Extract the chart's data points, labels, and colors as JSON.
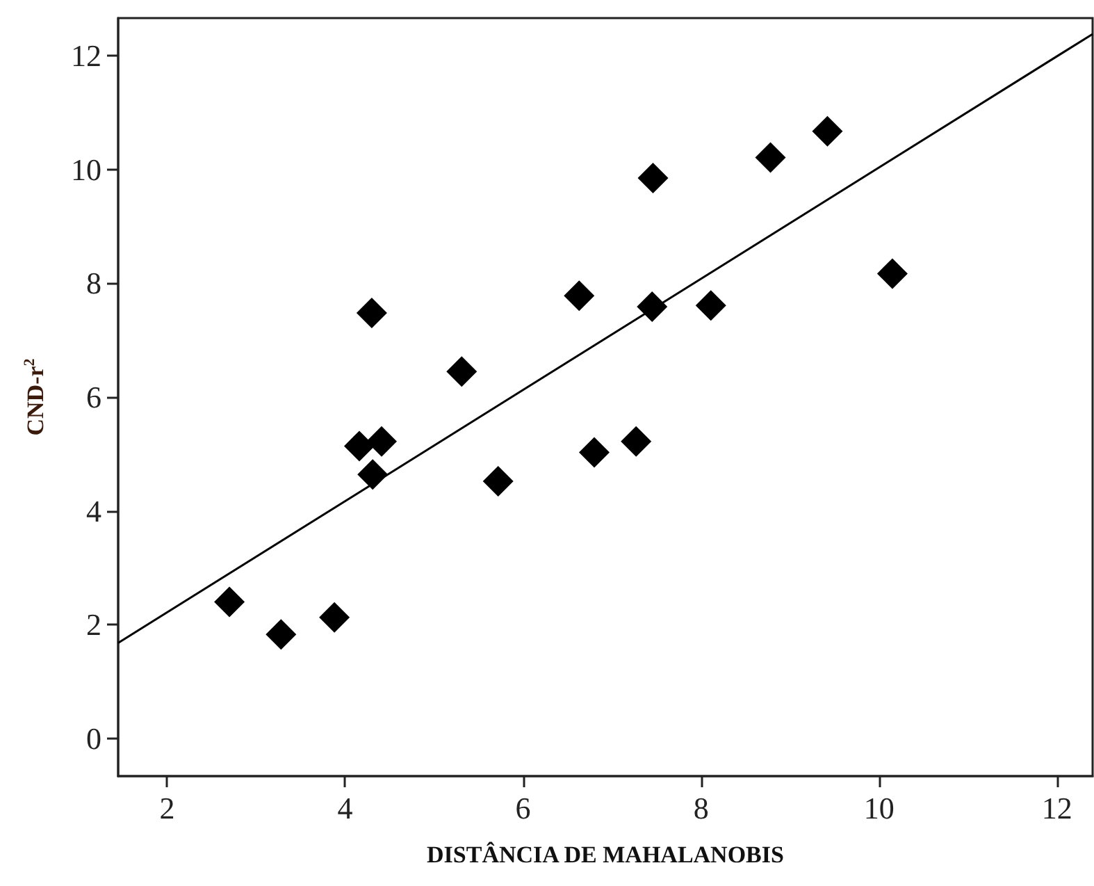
{
  "chart_data": {
    "type": "scatter",
    "xlabel": "DISTÂNCIA DE MAHALANOBIS",
    "ylabel": "CND-r$^{2}$",
    "x": [
      2.7,
      3.28,
      3.88,
      4.16,
      4.41,
      4.31,
      4.3,
      5.31,
      5.72,
      6.63,
      6.8,
      7.27,
      7.45,
      7.46,
      8.11,
      8.78,
      9.42,
      10.15
    ],
    "series": [
      {
        "color": "#000000",
        "marker": "diamond",
        "values": [
          2.4,
          1.83,
          2.13,
          5.14,
          5.22,
          4.64,
          7.48,
          6.45,
          4.52,
          7.78,
          5.03,
          5.22,
          7.59,
          9.85,
          7.61,
          10.21,
          10.67,
          8.17
        ]
      },
      {
        "type": "line",
        "color": "#000000",
        "marker": "none",
        "line_style": "solid",
        "x": [
          1.45,
          12.4
        ],
        "values": [
          1.68,
          12.38
        ]
      }
    ],
    "xlim": [
      1.45,
      12.4
    ],
    "xticks": [
      2,
      4,
      6,
      8,
      10,
      12
    ],
    "ylim": [
      -0.66,
      12.66
    ],
    "yticks": [
      0,
      2,
      4,
      6,
      8,
      10,
      12
    ],
    "grid": false
  }
}
